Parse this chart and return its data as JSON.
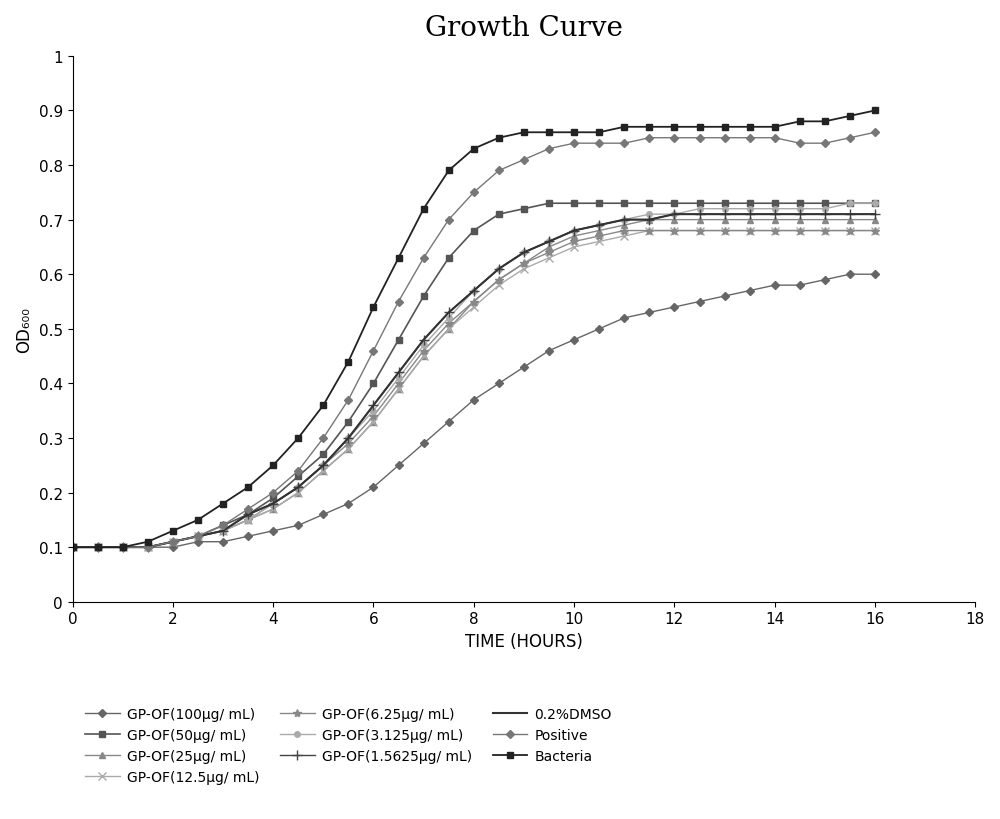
{
  "title": "Growth Curve",
  "xlabel": "TIME (HOURS)",
  "ylabel": "OD₆₀₀",
  "xlim": [
    0,
    18
  ],
  "ylim": [
    0,
    1.0
  ],
  "xticks": [
    0,
    2,
    4,
    6,
    8,
    10,
    12,
    14,
    16,
    18
  ],
  "yticks": [
    0,
    0.1,
    0.2,
    0.3,
    0.4,
    0.5,
    0.6,
    0.7,
    0.8,
    0.9,
    1
  ],
  "ytick_labels": [
    "0",
    "0.1",
    "0.2",
    "0.3",
    "0.4",
    "0.5",
    "0.6",
    "0.7",
    "0.8",
    "0.9",
    "1"
  ],
  "series": [
    {
      "label": "GP-OF(100μg/ mL)",
      "color": "#666666",
      "marker": "D",
      "markersize": 4,
      "linewidth": 1.0,
      "x": [
        0,
        0.5,
        1,
        1.5,
        2,
        2.5,
        3,
        3.5,
        4,
        4.5,
        5,
        5.5,
        6,
        6.5,
        7,
        7.5,
        8,
        8.5,
        9,
        9.5,
        10,
        10.5,
        11,
        11.5,
        12,
        12.5,
        13,
        13.5,
        14,
        14.5,
        15,
        15.5,
        16
      ],
      "y": [
        0.1,
        0.1,
        0.1,
        0.1,
        0.1,
        0.11,
        0.11,
        0.12,
        0.13,
        0.14,
        0.16,
        0.18,
        0.21,
        0.25,
        0.29,
        0.33,
        0.37,
        0.4,
        0.43,
        0.46,
        0.48,
        0.5,
        0.52,
        0.53,
        0.54,
        0.55,
        0.56,
        0.57,
        0.58,
        0.58,
        0.59,
        0.6,
        0.6
      ]
    },
    {
      "label": "GP-OF(50μg/ mL)",
      "color": "#555555",
      "marker": "s",
      "markersize": 5,
      "linewidth": 1.2,
      "x": [
        0,
        0.5,
        1,
        1.5,
        2,
        2.5,
        3,
        3.5,
        4,
        4.5,
        5,
        5.5,
        6,
        6.5,
        7,
        7.5,
        8,
        8.5,
        9,
        9.5,
        10,
        10.5,
        11,
        11.5,
        12,
        12.5,
        13,
        13.5,
        14,
        14.5,
        15,
        15.5,
        16
      ],
      "y": [
        0.1,
        0.1,
        0.1,
        0.1,
        0.11,
        0.12,
        0.14,
        0.16,
        0.19,
        0.23,
        0.27,
        0.33,
        0.4,
        0.48,
        0.56,
        0.63,
        0.68,
        0.71,
        0.72,
        0.73,
        0.73,
        0.73,
        0.73,
        0.73,
        0.73,
        0.73,
        0.73,
        0.73,
        0.73,
        0.73,
        0.73,
        0.73,
        0.73
      ]
    },
    {
      "label": "GP-OF(25μg/ mL)",
      "color": "#888888",
      "marker": "^",
      "markersize": 4,
      "linewidth": 1.0,
      "x": [
        0,
        0.5,
        1,
        1.5,
        2,
        2.5,
        3,
        3.5,
        4,
        4.5,
        5,
        5.5,
        6,
        6.5,
        7,
        7.5,
        8,
        8.5,
        9,
        9.5,
        10,
        10.5,
        11,
        11.5,
        12,
        12.5,
        13,
        13.5,
        14,
        14.5,
        15,
        15.5,
        16
      ],
      "y": [
        0.1,
        0.1,
        0.1,
        0.1,
        0.11,
        0.12,
        0.13,
        0.15,
        0.17,
        0.2,
        0.24,
        0.28,
        0.33,
        0.39,
        0.45,
        0.5,
        0.55,
        0.59,
        0.62,
        0.65,
        0.67,
        0.68,
        0.69,
        0.7,
        0.7,
        0.7,
        0.7,
        0.7,
        0.7,
        0.7,
        0.7,
        0.7,
        0.7
      ]
    },
    {
      "label": "GP-OF(12.5μg/ mL)",
      "color": "#aaaaaa",
      "marker": "x",
      "markersize": 6,
      "linewidth": 1.0,
      "x": [
        0,
        0.5,
        1,
        1.5,
        2,
        2.5,
        3,
        3.5,
        4,
        4.5,
        5,
        5.5,
        6,
        6.5,
        7,
        7.5,
        8,
        8.5,
        9,
        9.5,
        10,
        10.5,
        11,
        11.5,
        12,
        12.5,
        13,
        13.5,
        14,
        14.5,
        15,
        15.5,
        16
      ],
      "y": [
        0.1,
        0.1,
        0.1,
        0.1,
        0.11,
        0.12,
        0.13,
        0.15,
        0.17,
        0.2,
        0.24,
        0.28,
        0.33,
        0.39,
        0.45,
        0.5,
        0.54,
        0.58,
        0.61,
        0.63,
        0.65,
        0.66,
        0.67,
        0.68,
        0.68,
        0.68,
        0.68,
        0.68,
        0.68,
        0.68,
        0.68,
        0.68,
        0.68
      ]
    },
    {
      "label": "GP-OF(6.25μg/ mL)",
      "color": "#888888",
      "marker": "*",
      "markersize": 6,
      "linewidth": 1.0,
      "x": [
        0,
        0.5,
        1,
        1.5,
        2,
        2.5,
        3,
        3.5,
        4,
        4.5,
        5,
        5.5,
        6,
        6.5,
        7,
        7.5,
        8,
        8.5,
        9,
        9.5,
        10,
        10.5,
        11,
        11.5,
        12,
        12.5,
        13,
        13.5,
        14,
        14.5,
        15,
        15.5,
        16
      ],
      "y": [
        0.1,
        0.1,
        0.1,
        0.1,
        0.11,
        0.12,
        0.13,
        0.15,
        0.18,
        0.21,
        0.25,
        0.29,
        0.34,
        0.4,
        0.46,
        0.51,
        0.55,
        0.59,
        0.62,
        0.64,
        0.66,
        0.67,
        0.68,
        0.68,
        0.68,
        0.68,
        0.68,
        0.68,
        0.68,
        0.68,
        0.68,
        0.68,
        0.68
      ]
    },
    {
      "label": "GP-OF(3.125μg/ mL)",
      "color": "#aaaaaa",
      "marker": "o",
      "markersize": 4,
      "linewidth": 1.0,
      "x": [
        0,
        0.5,
        1,
        1.5,
        2,
        2.5,
        3,
        3.5,
        4,
        4.5,
        5,
        5.5,
        6,
        6.5,
        7,
        7.5,
        8,
        8.5,
        9,
        9.5,
        10,
        10.5,
        11,
        11.5,
        12,
        12.5,
        13,
        13.5,
        14,
        14.5,
        15,
        15.5,
        16
      ],
      "y": [
        0.1,
        0.1,
        0.1,
        0.1,
        0.11,
        0.12,
        0.13,
        0.15,
        0.18,
        0.21,
        0.25,
        0.3,
        0.35,
        0.41,
        0.47,
        0.52,
        0.57,
        0.61,
        0.64,
        0.66,
        0.68,
        0.69,
        0.7,
        0.71,
        0.71,
        0.72,
        0.72,
        0.72,
        0.72,
        0.72,
        0.72,
        0.73,
        0.73
      ]
    },
    {
      "label": "GP-OF(1.5625μg/ mL)",
      "color": "#444444",
      "marker": "+",
      "markersize": 7,
      "linewidth": 1.0,
      "x": [
        0,
        0.5,
        1,
        1.5,
        2,
        2.5,
        3,
        3.5,
        4,
        4.5,
        5,
        5.5,
        6,
        6.5,
        7,
        7.5,
        8,
        8.5,
        9,
        9.5,
        10,
        10.5,
        11,
        11.5,
        12,
        12.5,
        13,
        13.5,
        14,
        14.5,
        15,
        15.5,
        16
      ],
      "y": [
        0.1,
        0.1,
        0.1,
        0.1,
        0.11,
        0.12,
        0.13,
        0.16,
        0.18,
        0.21,
        0.25,
        0.3,
        0.36,
        0.42,
        0.48,
        0.53,
        0.57,
        0.61,
        0.64,
        0.66,
        0.68,
        0.69,
        0.7,
        0.7,
        0.71,
        0.71,
        0.71,
        0.71,
        0.71,
        0.71,
        0.71,
        0.71,
        0.71
      ]
    },
    {
      "label": "0.2%DMSO",
      "color": "#333333",
      "marker": "None",
      "markersize": 0,
      "linewidth": 1.5,
      "x": [
        0,
        0.5,
        1,
        1.5,
        2,
        2.5,
        3,
        3.5,
        4,
        4.5,
        5,
        5.5,
        6,
        6.5,
        7,
        7.5,
        8,
        8.5,
        9,
        9.5,
        10,
        10.5,
        11,
        11.5,
        12,
        12.5,
        13,
        13.5,
        14,
        14.5,
        15,
        15.5,
        16
      ],
      "y": [
        0.1,
        0.1,
        0.1,
        0.1,
        0.11,
        0.12,
        0.13,
        0.16,
        0.18,
        0.21,
        0.25,
        0.3,
        0.36,
        0.42,
        0.48,
        0.53,
        0.57,
        0.61,
        0.64,
        0.66,
        0.68,
        0.69,
        0.7,
        0.7,
        0.71,
        0.71,
        0.71,
        0.71,
        0.71,
        0.71,
        0.71,
        0.71,
        0.71
      ]
    },
    {
      "label": "Positive",
      "color": "#777777",
      "marker": "D",
      "markersize": 4,
      "linewidth": 1.0,
      "x": [
        0,
        0.5,
        1,
        1.5,
        2,
        2.5,
        3,
        3.5,
        4,
        4.5,
        5,
        5.5,
        6,
        6.5,
        7,
        7.5,
        8,
        8.5,
        9,
        9.5,
        10,
        10.5,
        11,
        11.5,
        12,
        12.5,
        13,
        13.5,
        14,
        14.5,
        15,
        15.5,
        16
      ],
      "y": [
        0.1,
        0.1,
        0.1,
        0.1,
        0.11,
        0.12,
        0.14,
        0.17,
        0.2,
        0.24,
        0.3,
        0.37,
        0.46,
        0.55,
        0.63,
        0.7,
        0.75,
        0.79,
        0.81,
        0.83,
        0.84,
        0.84,
        0.84,
        0.85,
        0.85,
        0.85,
        0.85,
        0.85,
        0.85,
        0.84,
        0.84,
        0.85,
        0.86
      ]
    },
    {
      "label": "Bacteria",
      "color": "#222222",
      "marker": "s",
      "markersize": 5,
      "linewidth": 1.3,
      "x": [
        0,
        0.5,
        1,
        1.5,
        2,
        2.5,
        3,
        3.5,
        4,
        4.5,
        5,
        5.5,
        6,
        6.5,
        7,
        7.5,
        8,
        8.5,
        9,
        9.5,
        10,
        10.5,
        11,
        11.5,
        12,
        12.5,
        13,
        13.5,
        14,
        14.5,
        15,
        15.5,
        16
      ],
      "y": [
        0.1,
        0.1,
        0.1,
        0.11,
        0.13,
        0.15,
        0.18,
        0.21,
        0.25,
        0.3,
        0.36,
        0.44,
        0.54,
        0.63,
        0.72,
        0.79,
        0.83,
        0.85,
        0.86,
        0.86,
        0.86,
        0.86,
        0.87,
        0.87,
        0.87,
        0.87,
        0.87,
        0.87,
        0.87,
        0.88,
        0.88,
        0.89,
        0.9
      ]
    }
  ],
  "legend_order": [
    0,
    1,
    2,
    3,
    4,
    5,
    6,
    7,
    8,
    9
  ],
  "legend_ncol": 3,
  "title_fontsize": 20,
  "axis_label_fontsize": 12,
  "tick_fontsize": 11,
  "legend_fontsize": 10
}
